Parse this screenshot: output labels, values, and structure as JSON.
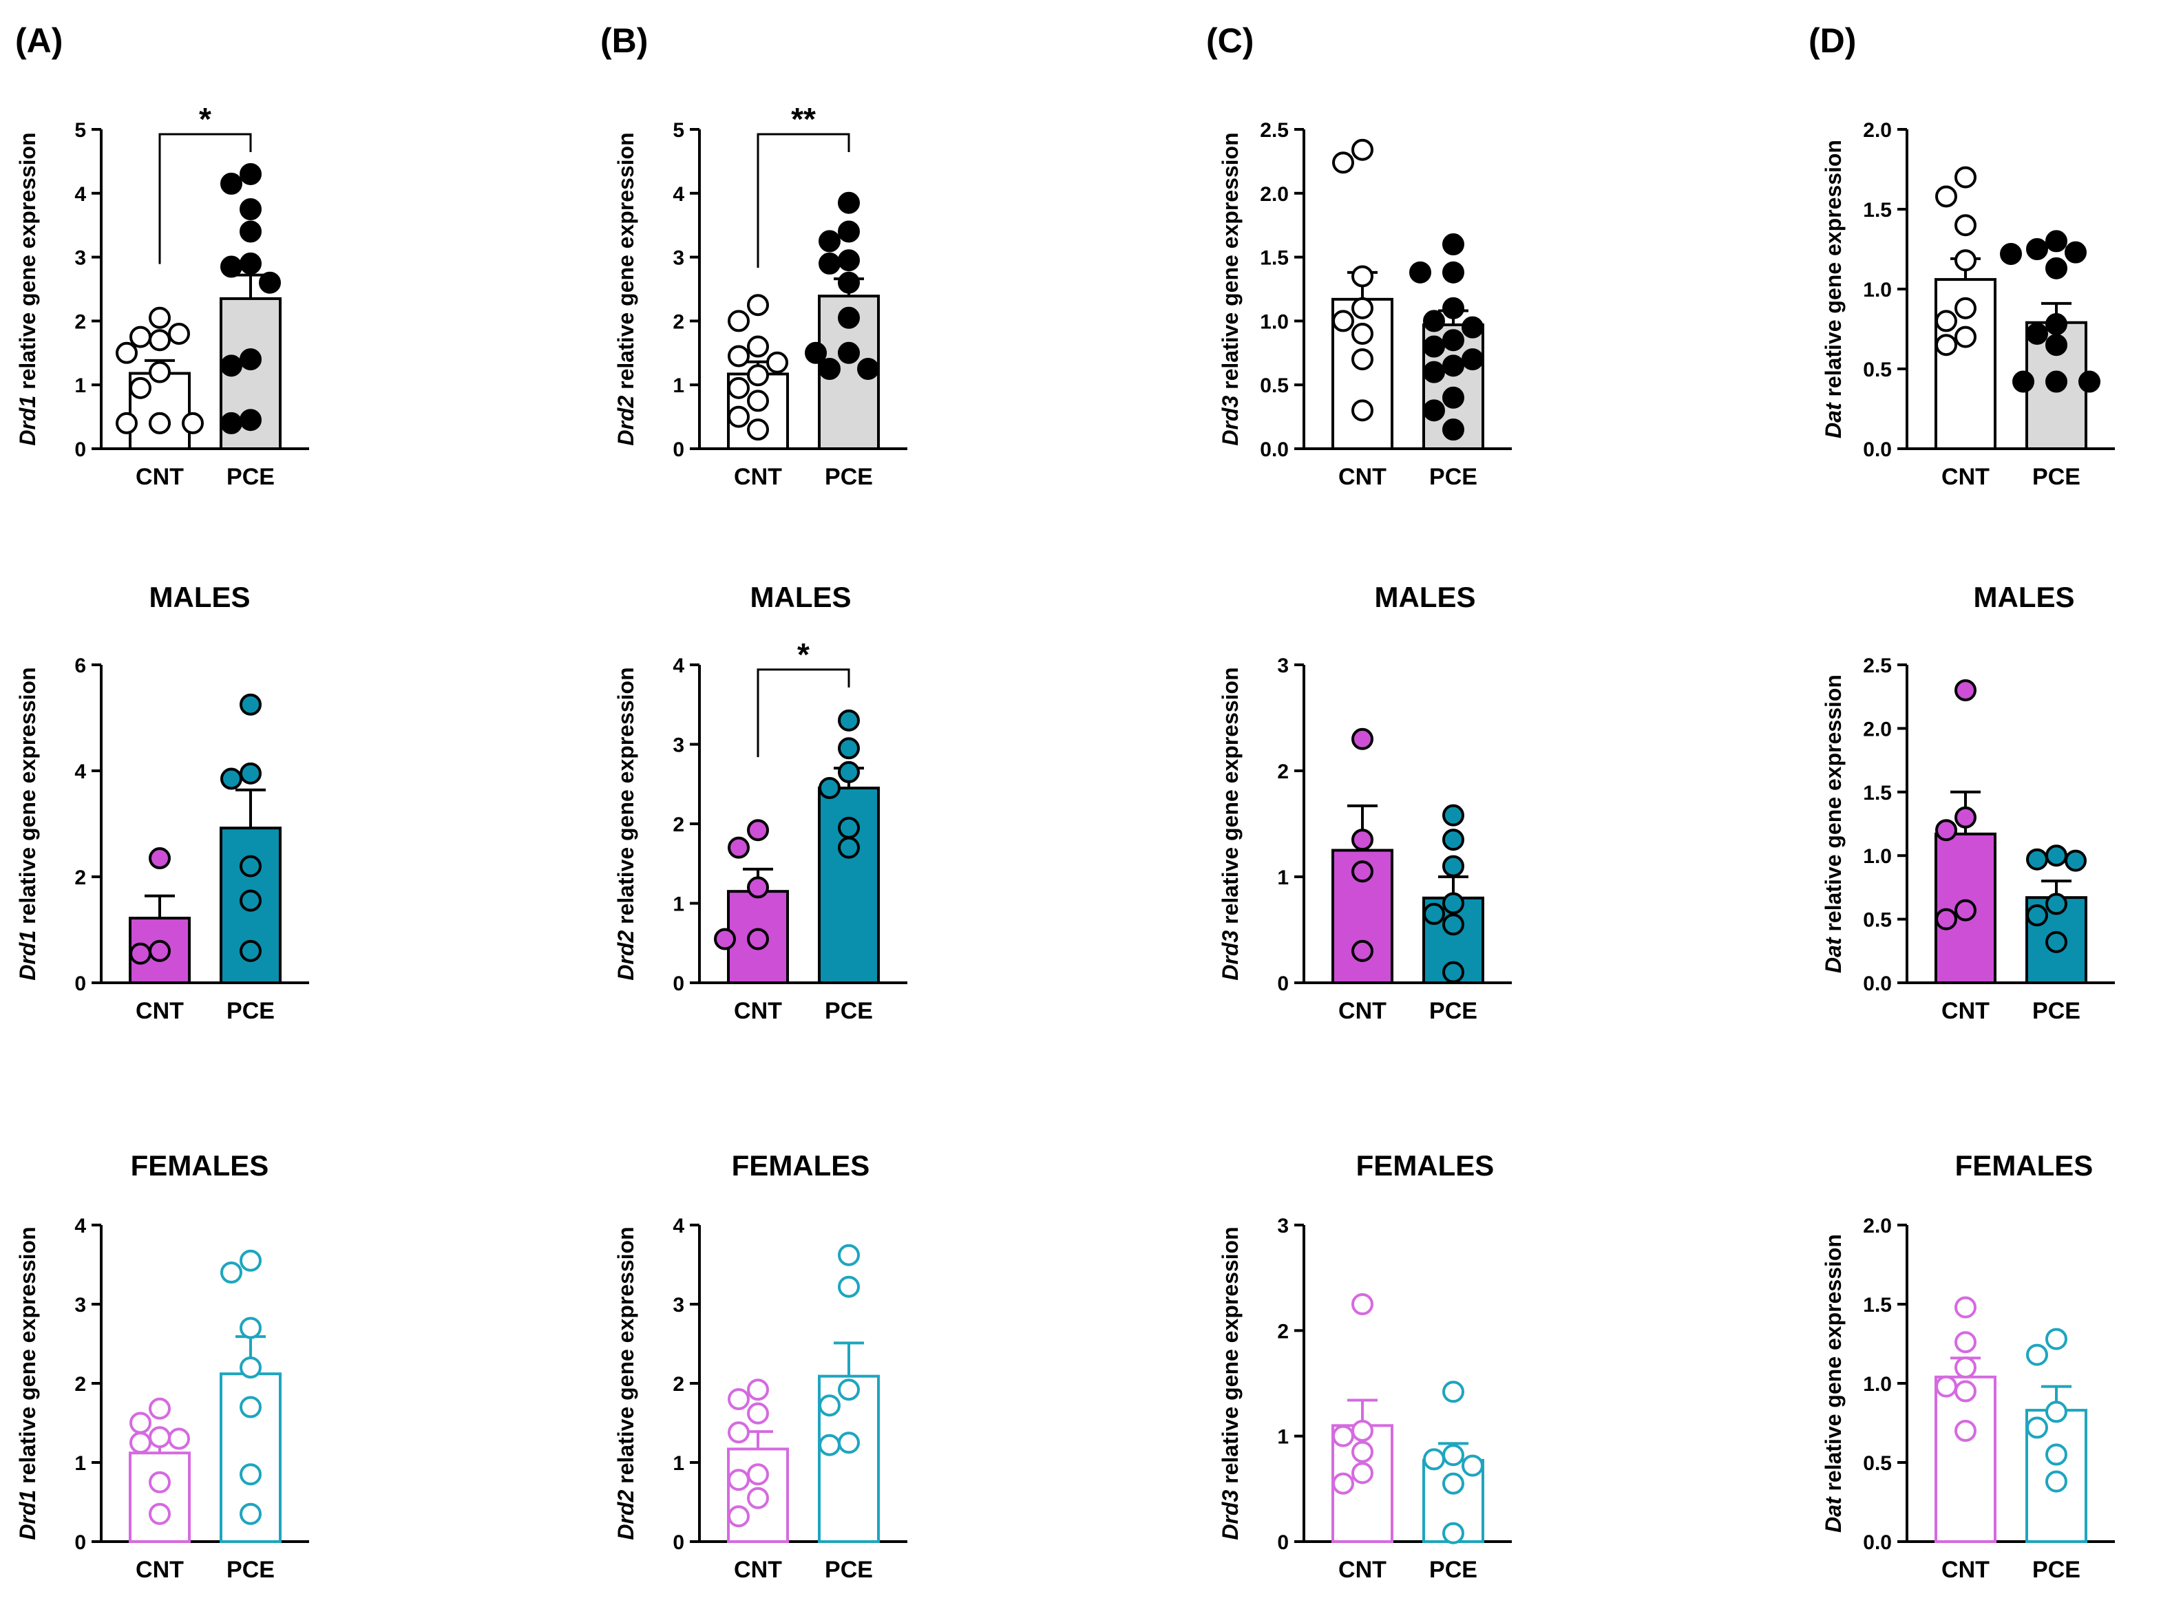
{
  "panels": [
    "(A)",
    "(B)",
    "(C)",
    "(D)"
  ],
  "row_titles": [
    "",
    "MALES",
    "FEMALES"
  ],
  "colors": {
    "cnt_total_fill": "#ffffff",
    "pce_total_fill": "#d9d9d9",
    "male_cnt": "#cc4fd6",
    "male_pce": "#0a90ad",
    "female_cnt": "#d56ae0",
    "female_pce": "#1ea5bf"
  },
  "chart_data": [
    {
      "id": "A1",
      "type": "bar",
      "panel": "(A)",
      "group": "total",
      "gene": "Drd1",
      "ylabel_rest": "relative gene expression",
      "categories": [
        "CNT",
        "PCE"
      ],
      "values": [
        1.18,
        2.35
      ],
      "sem": [
        0.2,
        0.37
      ],
      "ylim": [
        0,
        5
      ],
      "yticks": [
        "0",
        "1",
        "2",
        "3",
        "4",
        "5"
      ],
      "points": [
        [
          2.05,
          1.75,
          1.8,
          1.7,
          1.5,
          1.2,
          0.95,
          0.4,
          0.4,
          0.4,
          0.4
        ],
        [
          4.3,
          4.15,
          3.75,
          3.4,
          2.9,
          2.85,
          2.6,
          1.4,
          1.3,
          0.45,
          0.4
        ]
      ],
      "significance": "*"
    },
    {
      "id": "B1",
      "type": "bar",
      "panel": "(B)",
      "group": "total",
      "gene": "Drd2",
      "ylabel_rest": "relative gene expression",
      "categories": [
        "CNT",
        "PCE"
      ],
      "values": [
        1.17,
        2.39
      ],
      "sem": [
        0.19,
        0.27
      ],
      "ylim": [
        0,
        5
      ],
      "yticks": [
        "0",
        "1",
        "2",
        "3",
        "4",
        "5"
      ],
      "points": [
        [
          2.25,
          2.0,
          1.6,
          1.45,
          1.35,
          1.15,
          0.95,
          0.75,
          0.5,
          0.3
        ],
        [
          3.85,
          3.4,
          3.25,
          2.95,
          2.9,
          2.6,
          2.05,
          1.5,
          1.5,
          1.25,
          1.25
        ]
      ],
      "significance": "**"
    },
    {
      "id": "C1",
      "type": "bar",
      "panel": "(C)",
      "group": "total",
      "gene": "Drd3",
      "ylabel_rest": "relative gene expression",
      "categories": [
        "CNT",
        "PCE"
      ],
      "values": [
        1.17,
        0.97
      ],
      "sem": [
        0.21,
        0.11
      ],
      "ylim": [
        0,
        2.5
      ],
      "yticks": [
        "0.0",
        "0.5",
        "1.0",
        "1.5",
        "2.0",
        "2.5"
      ],
      "points": [
        [
          2.34,
          2.24,
          1.35,
          1.1,
          1.0,
          0.9,
          0.7,
          0.3
        ],
        [
          1.6,
          1.38,
          1.38,
          1.1,
          1.0,
          0.95,
          0.85,
          0.8,
          0.7,
          0.65,
          0.6,
          0.4,
          0.3,
          0.15
        ]
      ],
      "significance": ""
    },
    {
      "id": "D1",
      "type": "bar",
      "panel": "(D)",
      "group": "total",
      "gene": "Dat",
      "ylabel_rest": "relative gene expression",
      "categories": [
        "CNT",
        "PCE"
      ],
      "values": [
        1.06,
        0.79
      ],
      "sem": [
        0.13,
        0.12
      ],
      "ylim": [
        0,
        2.0
      ],
      "yticks": [
        "0.0",
        "0.5",
        "1.0",
        "1.5",
        "2.0"
      ],
      "points": [
        [
          1.7,
          1.58,
          1.4,
          1.18,
          0.88,
          0.8,
          0.7,
          0.65
        ],
        [
          1.3,
          1.25,
          1.23,
          1.22,
          1.13,
          0.78,
          0.72,
          0.65,
          0.42,
          0.42,
          0.42
        ]
      ],
      "significance": ""
    },
    {
      "id": "A2",
      "type": "bar",
      "panel": "(A)",
      "group": "males",
      "gene": "Drd1",
      "ylabel_rest": "relative gene expression",
      "categories": [
        "CNT",
        "PCE"
      ],
      "values": [
        1.22,
        2.92
      ],
      "sem": [
        0.42,
        0.72
      ],
      "ylim": [
        0,
        6
      ],
      "yticks": [
        "0",
        "2",
        "4",
        "6"
      ],
      "points": [
        [
          2.35,
          0.6,
          0.55
        ],
        [
          5.25,
          3.95,
          3.85,
          2.2,
          1.55,
          0.6
        ]
      ],
      "significance": ""
    },
    {
      "id": "B2",
      "type": "bar",
      "panel": "(B)",
      "group": "males",
      "gene": "Drd2",
      "ylabel_rest": "relative gene expression",
      "categories": [
        "CNT",
        "PCE"
      ],
      "values": [
        1.15,
        2.45
      ],
      "sem": [
        0.28,
        0.25
      ],
      "ylim": [
        0,
        4
      ],
      "yticks": [
        "0",
        "1",
        "2",
        "3",
        "4"
      ],
      "points": [
        [
          1.92,
          1.7,
          1.2,
          0.55,
          0.55
        ],
        [
          3.3,
          2.95,
          2.65,
          2.45,
          1.95,
          1.7
        ]
      ],
      "significance": "*"
    },
    {
      "id": "C2",
      "type": "bar",
      "panel": "(C)",
      "group": "males",
      "gene": "Drd3",
      "ylabel_rest": "relative gene expression",
      "categories": [
        "CNT",
        "PCE"
      ],
      "values": [
        1.25,
        0.8
      ],
      "sem": [
        0.42,
        0.2
      ],
      "ylim": [
        0,
        3
      ],
      "yticks": [
        "0",
        "1",
        "2",
        "3"
      ],
      "points": [
        [
          2.3,
          1.35,
          1.05,
          0.3
        ],
        [
          1.58,
          1.35,
          1.1,
          0.75,
          0.65,
          0.55,
          0.1
        ]
      ],
      "significance": ""
    },
    {
      "id": "D2",
      "type": "bar",
      "panel": "(D)",
      "group": "males",
      "gene": "Dat",
      "ylabel_rest": "relative gene expression",
      "categories": [
        "CNT",
        "PCE"
      ],
      "values": [
        1.17,
        0.67
      ],
      "sem": [
        0.33,
        0.13
      ],
      "ylim": [
        0,
        2.5
      ],
      "yticks": [
        "0.0",
        "0.5",
        "1.0",
        "1.5",
        "2.0",
        "2.5"
      ],
      "points": [
        [
          2.3,
          1.3,
          1.2,
          0.57,
          0.5
        ],
        [
          1.0,
          0.97,
          0.96,
          0.62,
          0.53,
          0.32
        ]
      ],
      "significance": ""
    },
    {
      "id": "A3",
      "type": "bar",
      "panel": "(A)",
      "group": "females",
      "gene": "Drd1",
      "ylabel_rest": "relative gene expression",
      "categories": [
        "CNT",
        "PCE"
      ],
      "values": [
        1.12,
        2.12
      ],
      "sem": [
        0.2,
        0.47
      ],
      "ylim": [
        0,
        4
      ],
      "yticks": [
        "0",
        "1",
        "2",
        "3",
        "4"
      ],
      "points": [
        [
          1.68,
          1.5,
          1.32,
          1.3,
          1.25,
          0.75,
          0.35
        ],
        [
          3.55,
          3.4,
          2.7,
          2.2,
          1.7,
          0.85,
          0.35
        ]
      ],
      "significance": ""
    },
    {
      "id": "B3",
      "type": "bar",
      "panel": "(B)",
      "group": "females",
      "gene": "Drd2",
      "ylabel_rest": "relative gene expression",
      "categories": [
        "CNT",
        "PCE"
      ],
      "values": [
        1.17,
        2.09
      ],
      "sem": [
        0.22,
        0.42
      ],
      "ylim": [
        0,
        4
      ],
      "yticks": [
        "0",
        "1",
        "2",
        "3",
        "4"
      ],
      "points": [
        [
          1.92,
          1.8,
          1.62,
          1.38,
          0.85,
          0.78,
          0.55,
          0.32
        ],
        [
          3.62,
          3.22,
          1.92,
          1.72,
          1.25,
          1.22
        ]
      ],
      "significance": ""
    },
    {
      "id": "C3",
      "type": "bar",
      "panel": "(C)",
      "group": "females",
      "gene": "Drd3",
      "ylabel_rest": "relative gene expression",
      "categories": [
        "CNT",
        "PCE"
      ],
      "values": [
        1.1,
        0.77
      ],
      "sem": [
        0.24,
        0.16
      ],
      "ylim": [
        0,
        3
      ],
      "yticks": [
        "0",
        "1",
        "2",
        "3"
      ],
      "points": [
        [
          2.25,
          1.05,
          1.0,
          0.85,
          0.65,
          0.55
        ],
        [
          1.42,
          0.82,
          0.78,
          0.72,
          0.55,
          0.08
        ]
      ],
      "significance": ""
    },
    {
      "id": "D3",
      "type": "bar",
      "panel": "(D)",
      "group": "females",
      "gene": "Dat",
      "ylabel_rest": "relative gene expression",
      "categories": [
        "CNT",
        "PCE"
      ],
      "values": [
        1.04,
        0.83
      ],
      "sem": [
        0.12,
        0.15
      ],
      "ylim": [
        0,
        2.0
      ],
      "yticks": [
        "0.0",
        "0.5",
        "1.0",
        "1.5",
        "2.0"
      ],
      "points": [
        [
          1.48,
          1.26,
          1.1,
          0.98,
          0.95,
          0.7
        ],
        [
          1.28,
          1.18,
          0.82,
          0.72,
          0.55,
          0.38
        ]
      ],
      "significance": ""
    }
  ]
}
